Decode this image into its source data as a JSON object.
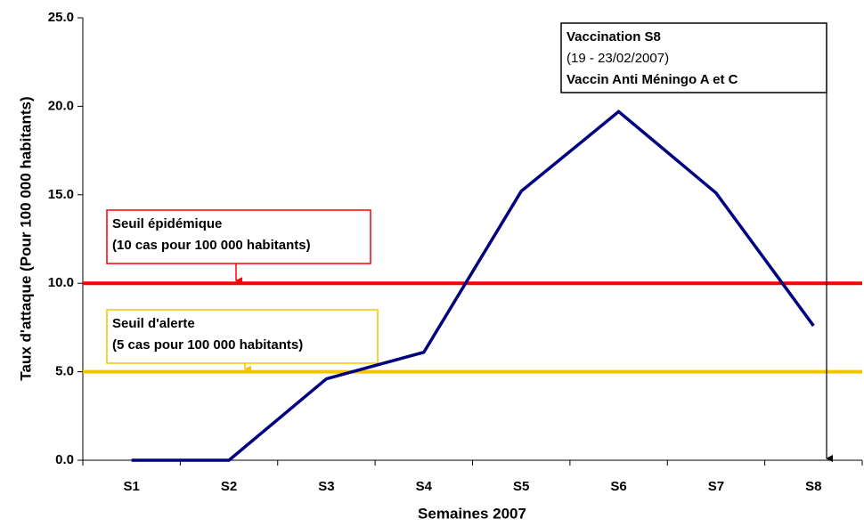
{
  "chart_data": {
    "type": "line",
    "y_label": "Taux d'attaque (Pour 100 000 habitants)",
    "x_label": "Semaines 2007",
    "categories": [
      "S1",
      "S2",
      "S3",
      "S4",
      "S5",
      "S6",
      "S7",
      "S8"
    ],
    "series": [
      {
        "color": "#000080",
        "values": [
          0,
          0,
          4.6,
          6.1,
          15.2,
          19.7,
          15.1,
          7.6
        ]
      }
    ],
    "ylim": [
      0,
      25
    ],
    "yticks": [
      {
        "value": 0,
        "label": "0.0"
      },
      {
        "value": 5,
        "label": "5.0"
      },
      {
        "value": 10,
        "label": "10.0"
      },
      {
        "value": 15,
        "label": "15.0"
      },
      {
        "value": 20,
        "label": "20.0"
      },
      {
        "value": 25,
        "label": "25.0"
      }
    ],
    "thresholds": [
      {
        "value": 10,
        "color": "#ff0000",
        "lines": [
          "Seuil épidémique",
          "(10 cas pour 100 000 habitants)"
        ]
      },
      {
        "value": 5,
        "color": "#f5c400",
        "lines": [
          "Seuil d'alerte",
          "(5 cas pour 100 000 habitants)"
        ]
      }
    ],
    "annotation": {
      "lines": [
        "Vaccination S8",
        "(19 - 23/02/2007)",
        "Vaccin Anti Méningo A et C"
      ]
    }
  }
}
